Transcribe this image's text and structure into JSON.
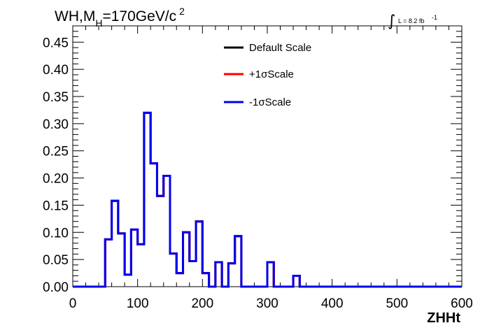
{
  "chart_data": {
    "type": "line",
    "title": "",
    "title_parts": {
      "main": "WH,M",
      "subscript": "H",
      "rest": "=170GeV/c",
      "superscript": "2"
    },
    "luminosity_label": {
      "integral": "∫",
      "text": "L = 8.2 fb",
      "superscript": "-1"
    },
    "xlabel": "ZHHt",
    "ylabel": "",
    "xlim": [
      0,
      600
    ],
    "ylim": [
      0,
      0.48
    ],
    "x_ticks": [
      0,
      100,
      200,
      300,
      400,
      500,
      600
    ],
    "x_tick_labels": [
      "0",
      "100",
      "200",
      "300",
      "400",
      "500",
      "600"
    ],
    "y_ticks": [
      0,
      0.05,
      0.1,
      0.15,
      0.2,
      0.25,
      0.3,
      0.35,
      0.4,
      0.45
    ],
    "y_tick_labels": [
      "0.00",
      "0.05",
      "0.10",
      "0.15",
      "0.20",
      "0.25",
      "0.30",
      "0.35",
      "0.40",
      "0.45"
    ],
    "grid": false,
    "legend_position": "top-center",
    "bin_edges": [
      0,
      10,
      20,
      30,
      40,
      50,
      60,
      70,
      80,
      90,
      100,
      110,
      120,
      130,
      140,
      150,
      160,
      170,
      180,
      190,
      200,
      210,
      220,
      230,
      240,
      250,
      260,
      270,
      280,
      290,
      300,
      310,
      320,
      330,
      340,
      350,
      360,
      370,
      380,
      390,
      400,
      410,
      420,
      430,
      440,
      450,
      460,
      470,
      480,
      490,
      500,
      510,
      520,
      530,
      540,
      550,
      560,
      570,
      580,
      590,
      600
    ],
    "series": [
      {
        "name": "Default Scale",
        "color": "#000000",
        "values": [
          0,
          0,
          0,
          0,
          0,
          0.087,
          0.158,
          0.098,
          0.022,
          0.105,
          0.078,
          0.32,
          0.227,
          0.167,
          0.204,
          0.061,
          0.025,
          0.1,
          0.047,
          0.12,
          0.025,
          0,
          0.045,
          0,
          0.043,
          0.093,
          0,
          0,
          0,
          0,
          0.045,
          0,
          0,
          0,
          0.02,
          0,
          0,
          0,
          0,
          0,
          0,
          0,
          0,
          0,
          0,
          0,
          0,
          0,
          0,
          0,
          0,
          0,
          0,
          0,
          0,
          0,
          0,
          0,
          0,
          0
        ]
      },
      {
        "name": "+1σScale",
        "color": "#ff0000",
        "values": [
          0,
          0,
          0,
          0,
          0,
          0.087,
          0.158,
          0.098,
          0.022,
          0.105,
          0.078,
          0.32,
          0.227,
          0.167,
          0.204,
          0.061,
          0.025,
          0.1,
          0.047,
          0.12,
          0.025,
          0,
          0.045,
          0,
          0.043,
          0.093,
          0,
          0,
          0,
          0,
          0.045,
          0,
          0,
          0,
          0.02,
          0,
          0,
          0,
          0,
          0,
          0,
          0,
          0,
          0,
          0,
          0,
          0,
          0,
          0,
          0,
          0,
          0,
          0,
          0,
          0,
          0,
          0,
          0,
          0,
          0
        ]
      },
      {
        "name": "-1σScale",
        "color": "#0000ee",
        "values": [
          0,
          0,
          0,
          0,
          0,
          0.087,
          0.158,
          0.098,
          0.022,
          0.105,
          0.078,
          0.32,
          0.227,
          0.167,
          0.204,
          0.061,
          0.025,
          0.1,
          0.047,
          0.12,
          0.025,
          0,
          0.045,
          0,
          0.043,
          0.093,
          0,
          0,
          0,
          0,
          0.045,
          0,
          0,
          0,
          0.02,
          0,
          0,
          0,
          0,
          0,
          0,
          0,
          0,
          0,
          0,
          0,
          0,
          0,
          0,
          0,
          0,
          0,
          0,
          0,
          0,
          0,
          0,
          0,
          0,
          0
        ]
      }
    ]
  }
}
